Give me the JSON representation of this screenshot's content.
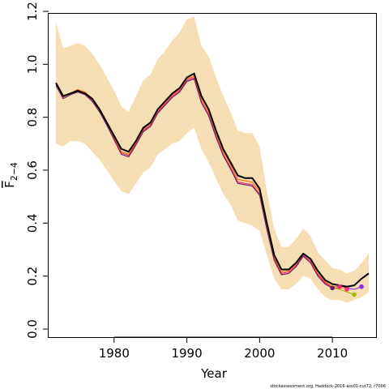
{
  "chart_data": {
    "type": "line",
    "title": "",
    "xlabel": "Year",
    "ylabel": "F",
    "ylabel_subscript": "2−4",
    "xlim": [
      1971,
      2016
    ],
    "ylim": [
      0,
      1.2
    ],
    "xticks": [
      1980,
      1990,
      2000,
      2010
    ],
    "yticks": [
      0.0,
      0.2,
      0.4,
      0.6,
      0.8,
      1.0,
      1.2
    ],
    "ytick_labels": [
      "0.0",
      "0.2",
      "0.4",
      "0.6",
      "0.8",
      "1.0",
      "1.2"
    ],
    "grid": false,
    "band_color": "#f5deb3",
    "band": {
      "x": [
        1972,
        1973,
        1974,
        1975,
        1976,
        1977,
        1978,
        1979,
        1980,
        1981,
        1982,
        1983,
        1984,
        1985,
        1986,
        1987,
        1988,
        1989,
        1990,
        1991,
        1992,
        1993,
        1994,
        1995,
        1996,
        1997,
        1998,
        1999,
        2000,
        2001,
        2002,
        2003,
        2004,
        2005,
        2006,
        2007,
        2008,
        2009,
        2010,
        2011,
        2012,
        2013,
        2014,
        2015
      ],
      "upper": [
        1.16,
        1.06,
        1.07,
        1.08,
        1.07,
        1.04,
        1.0,
        0.95,
        0.9,
        0.84,
        0.82,
        0.88,
        0.94,
        0.96,
        1.02,
        1.05,
        1.09,
        1.12,
        1.17,
        1.18,
        1.07,
        1.03,
        0.95,
        0.88,
        0.82,
        0.75,
        0.74,
        0.74,
        0.69,
        0.52,
        0.38,
        0.31,
        0.31,
        0.34,
        0.38,
        0.35,
        0.29,
        0.26,
        0.23,
        0.225,
        0.21,
        0.22,
        0.25,
        0.285
      ],
      "lower": [
        0.7,
        0.69,
        0.71,
        0.71,
        0.7,
        0.67,
        0.64,
        0.6,
        0.56,
        0.52,
        0.51,
        0.55,
        0.59,
        0.61,
        0.66,
        0.68,
        0.7,
        0.71,
        0.74,
        0.76,
        0.68,
        0.63,
        0.57,
        0.51,
        0.47,
        0.41,
        0.4,
        0.39,
        0.37,
        0.28,
        0.19,
        0.15,
        0.15,
        0.17,
        0.2,
        0.19,
        0.15,
        0.12,
        0.11,
        0.11,
        0.1,
        0.11,
        0.12,
        0.14
      ]
    },
    "series": [
      {
        "color": "#000000",
        "width": 2,
        "x": [
          1972,
          1973,
          1974,
          1975,
          1976,
          1977,
          1978,
          1979,
          1980,
          1981,
          1982,
          1983,
          1984,
          1985,
          1986,
          1987,
          1988,
          1989,
          1990,
          1991,
          1992,
          1993,
          1994,
          1995,
          1996,
          1997,
          1998,
          1999,
          2000,
          2001,
          2002,
          2003,
          2004,
          2005,
          2006,
          2007,
          2008,
          2009,
          2010,
          2011,
          2012,
          2013,
          2014,
          2015
        ],
        "values": [
          0.93,
          0.88,
          0.89,
          0.9,
          0.89,
          0.87,
          0.83,
          0.78,
          0.73,
          0.68,
          0.67,
          0.71,
          0.76,
          0.78,
          0.83,
          0.86,
          0.89,
          0.91,
          0.95,
          0.965,
          0.88,
          0.83,
          0.75,
          0.68,
          0.63,
          0.58,
          0.57,
          0.57,
          0.53,
          0.4,
          0.28,
          0.225,
          0.225,
          0.25,
          0.285,
          0.265,
          0.22,
          0.185,
          0.17,
          0.165,
          0.16,
          0.165,
          0.19,
          0.21
        ]
      },
      {
        "color": "#e52d7a",
        "width": 1.1,
        "x": [
          1972,
          1973,
          1974,
          1975,
          1976,
          1977,
          1978,
          1979,
          1980,
          1981,
          1982,
          1983,
          1984,
          1985,
          1986,
          1987,
          1988,
          1989,
          1990,
          1991,
          1992,
          1993,
          1994,
          1995,
          1996,
          1997,
          1998,
          1999,
          2000,
          2001,
          2002,
          2003,
          2004,
          2005,
          2006,
          2007,
          2008,
          2009,
          2010,
          2011
        ],
        "values": [
          0.925,
          0.875,
          0.89,
          0.9,
          0.89,
          0.865,
          0.825,
          0.775,
          0.72,
          0.665,
          0.655,
          0.7,
          0.75,
          0.77,
          0.82,
          0.85,
          0.88,
          0.9,
          0.94,
          0.95,
          0.86,
          0.81,
          0.73,
          0.66,
          0.61,
          0.555,
          0.55,
          0.545,
          0.51,
          0.38,
          0.265,
          0.21,
          0.215,
          0.24,
          0.28,
          0.255,
          0.205,
          0.175,
          0.155,
          0.155
        ]
      },
      {
        "color": "#ff6a00",
        "width": 1.1,
        "x": [
          1972,
          1973,
          1974,
          1975,
          1976,
          1977,
          1978,
          1979,
          1980,
          1981,
          1982,
          1983,
          1984,
          1985,
          1986,
          1987,
          1988,
          1989,
          1990,
          1991,
          1992,
          1993,
          1994,
          1995,
          1996,
          1997,
          1998,
          1999,
          2000,
          2001,
          2002,
          2003,
          2004,
          2005,
          2006,
          2007,
          2008,
          2009,
          2010,
          2011,
          2012
        ],
        "values": [
          0.93,
          0.88,
          0.89,
          0.905,
          0.895,
          0.87,
          0.83,
          0.78,
          0.725,
          0.67,
          0.66,
          0.705,
          0.755,
          0.775,
          0.825,
          0.855,
          0.885,
          0.905,
          0.945,
          0.955,
          0.87,
          0.82,
          0.74,
          0.67,
          0.62,
          0.565,
          0.56,
          0.555,
          0.52,
          0.39,
          0.27,
          0.215,
          0.22,
          0.245,
          0.285,
          0.26,
          0.21,
          0.18,
          0.16,
          0.16,
          0.15
        ]
      },
      {
        "color": "#6d1b5e",
        "width": 1.1,
        "x": [
          1972,
          1973,
          1974,
          1975,
          1976,
          1977,
          1978,
          1979,
          1980,
          1981,
          1982,
          1983,
          1984,
          1985,
          1986,
          1987,
          1988,
          1989,
          1990,
          1991,
          1992,
          1993,
          1994,
          1995,
          1996,
          1997,
          1998,
          1999,
          2000,
          2001,
          2002,
          2003,
          2004,
          2005,
          2006,
          2007,
          2008,
          2009,
          2010
        ],
        "values": [
          0.92,
          0.87,
          0.885,
          0.895,
          0.885,
          0.86,
          0.82,
          0.77,
          0.715,
          0.66,
          0.65,
          0.695,
          0.745,
          0.765,
          0.815,
          0.845,
          0.875,
          0.895,
          0.935,
          0.945,
          0.855,
          0.805,
          0.725,
          0.655,
          0.605,
          0.55,
          0.545,
          0.54,
          0.505,
          0.375,
          0.26,
          0.205,
          0.21,
          0.235,
          0.275,
          0.25,
          0.2,
          0.17,
          0.155
        ]
      },
      {
        "color": "#9bbd00",
        "width": 1.1,
        "x": [
          2010,
          2011,
          2012,
          2013
        ],
        "values": [
          0.155,
          0.15,
          0.14,
          0.13
        ]
      },
      {
        "color": "#8a2be2",
        "width": 1.1,
        "x": [
          2011,
          2012,
          2013,
          2014
        ],
        "values": [
          0.165,
          0.155,
          0.15,
          0.16
        ]
      }
    ],
    "endpoints": [
      {
        "x": 2010,
        "y": 0.155,
        "color": "#6d1b5e"
      },
      {
        "x": 2011,
        "y": 0.16,
        "color": "#e52d7a"
      },
      {
        "x": 2012,
        "y": 0.15,
        "color": "#ff2d8a"
      },
      {
        "x": 2013,
        "y": 0.13,
        "color": "#9bbd00"
      },
      {
        "x": 2014,
        "y": 0.16,
        "color": "#8a2be2"
      }
    ]
  },
  "footer": {
    "credit": "stockassessment.org, Haddock-2016-ass01-cut72, r7006"
  }
}
